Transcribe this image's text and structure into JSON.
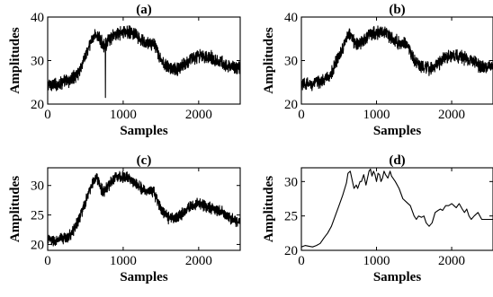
{
  "chart_data": [
    {
      "type": "line",
      "title": "(a)",
      "xlabel": "Samples",
      "ylabel": "Amplitudes",
      "xlim": [
        0,
        2550
      ],
      "ylim": [
        20,
        40
      ],
      "xticks": [
        0,
        1000,
        2000
      ],
      "yticks": [
        20,
        30,
        40
      ],
      "series": [
        {
          "noise": "heavy",
          "spike": {
            "x": 765,
            "y": 21.5
          },
          "x": [
            0,
            100,
            200,
            300,
            400,
            500,
            550,
            600,
            650,
            700,
            750,
            800,
            900,
            1000,
            1100,
            1150,
            1200,
            1300,
            1400,
            1500,
            1600,
            1700,
            1800,
            1900,
            2000,
            2100,
            2200,
            2300,
            2400,
            2500,
            2550
          ],
          "y": [
            24.5,
            24.5,
            25,
            25.5,
            27,
            31,
            33,
            35.5,
            36,
            34.5,
            33.5,
            34.5,
            36,
            36.5,
            36.5,
            36,
            35,
            34,
            34,
            30,
            28.5,
            28,
            29,
            30.5,
            31,
            31,
            30.5,
            29.5,
            28.5,
            28.5,
            28.5
          ]
        }
      ]
    },
    {
      "type": "line",
      "title": "(b)",
      "xlabel": "Samples",
      "ylabel": "Amplitudes",
      "xlim": [
        0,
        2550
      ],
      "ylim": [
        20,
        40
      ],
      "xticks": [
        0,
        1000,
        2000
      ],
      "yticks": [
        20,
        30,
        40
      ],
      "series": [
        {
          "noise": "heavy",
          "x": [
            0,
            100,
            200,
            300,
            400,
            500,
            550,
            600,
            650,
            700,
            750,
            800,
            900,
            1000,
            1100,
            1150,
            1200,
            1300,
            1400,
            1500,
            1600,
            1700,
            1800,
            1900,
            2000,
            2100,
            2200,
            2300,
            2400,
            2500,
            2550
          ],
          "y": [
            24.5,
            24.5,
            25,
            25.5,
            27,
            31,
            33,
            35.5,
            36,
            34.5,
            33.5,
            34.5,
            36,
            36.5,
            36.5,
            36,
            35,
            34,
            34,
            30,
            28.5,
            28,
            29,
            30.5,
            31,
            31,
            30.5,
            29.5,
            28.5,
            28.5,
            28.5
          ]
        }
      ]
    },
    {
      "type": "line",
      "title": "(c)",
      "xlabel": "Samples",
      "ylabel": "Amplitudes",
      "xlim": [
        0,
        2550
      ],
      "ylim": [
        19,
        33
      ],
      "xticks": [
        0,
        1000,
        2000
      ],
      "yticks": [
        20,
        25,
        30
      ],
      "series": [
        {
          "noise": "medium",
          "x": [
            0,
            100,
            200,
            300,
            400,
            500,
            550,
            600,
            650,
            700,
            750,
            800,
            900,
            1000,
            1100,
            1150,
            1200,
            1300,
            1400,
            1500,
            1600,
            1700,
            1800,
            1900,
            2000,
            2100,
            2200,
            2300,
            2400,
            2500,
            2550
          ],
          "y": [
            21,
            20.5,
            21,
            21.5,
            24,
            27,
            29,
            30.5,
            31.5,
            29.5,
            29,
            30,
            31.5,
            31.5,
            31,
            30.5,
            30,
            29,
            29,
            26,
            24.5,
            24.5,
            25.5,
            26.5,
            27,
            26.5,
            26,
            25.5,
            24.5,
            24,
            24
          ]
        }
      ]
    },
    {
      "type": "line",
      "title": "(d)",
      "xlabel": "Samples",
      "ylabel": "Amplitudes",
      "xlim": [
        0,
        2550
      ],
      "ylim": [
        20,
        32
      ],
      "xticks": [
        0,
        1000,
        2000
      ],
      "yticks": [
        20,
        25,
        30
      ],
      "series": [
        {
          "noise": "none",
          "x": [
            0,
            50,
            100,
            150,
            200,
            250,
            300,
            350,
            400,
            450,
            500,
            550,
            600,
            620,
            650,
            680,
            700,
            730,
            750,
            780,
            800,
            830,
            860,
            880,
            900,
            920,
            940,
            960,
            980,
            1000,
            1020,
            1040,
            1060,
            1080,
            1100,
            1120,
            1150,
            1180,
            1200,
            1250,
            1300,
            1350,
            1400,
            1450,
            1500,
            1530,
            1560,
            1600,
            1630,
            1660,
            1700,
            1740,
            1780,
            1820,
            1850,
            1880,
            1920,
            1960,
            2000,
            2030,
            2060,
            2100,
            2140,
            2170,
            2200,
            2230,
            2260,
            2300,
            2350,
            2400,
            2450,
            2500,
            2550
          ],
          "y": [
            20.5,
            20.7,
            20.6,
            20.5,
            20.7,
            21,
            21.8,
            22.5,
            23.5,
            25,
            26.5,
            28,
            29.8,
            31.2,
            31.5,
            30,
            29,
            29.5,
            29,
            30,
            30,
            31,
            29.5,
            30.5,
            31.5,
            31.8,
            30.8,
            31.5,
            31,
            30,
            31.2,
            31,
            30,
            30.5,
            31.5,
            31,
            30.5,
            31.5,
            30.8,
            30,
            29,
            27.5,
            27,
            26.5,
            25,
            24.5,
            25,
            24.8,
            25,
            24,
            23.5,
            24,
            25.5,
            25.8,
            26,
            25.8,
            26.5,
            26.5,
            26.8,
            26.5,
            26.2,
            26.8,
            26,
            25.5,
            26,
            25,
            24.5,
            25,
            25.5,
            24.5,
            24.5,
            24.5,
            24.5
          ]
        }
      ]
    }
  ]
}
